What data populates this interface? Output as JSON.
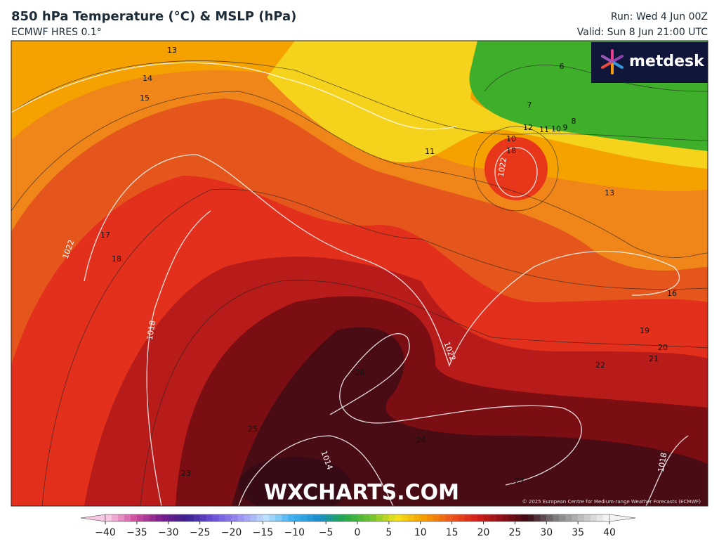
{
  "header": {
    "title": "850 hPa Temperature (°C) & MSLP (hPa)",
    "subtitle": "ECMWF HRES 0.1°",
    "run": "Run: Wed 4 Jun 00Z",
    "valid": "Valid: Sun 8 Jun 21:00 UTC"
  },
  "logo": "metdesk",
  "watermark": "WXCHARTS.COM",
  "copyright": "© 2025 European Centre for Medium-range Weather Forecasts (ECMWF)",
  "map_labels": [
    "13",
    "14",
    "15",
    "17",
    "18",
    "1022",
    "1018",
    "23",
    "25",
    "26",
    "27",
    "11",
    "12",
    "10",
    "18",
    "1022",
    "11",
    "10",
    "9",
    "8",
    "7",
    "6",
    "13",
    "16",
    "19",
    "20",
    "21",
    "22",
    "1022",
    "1014",
    "1018",
    "26"
  ],
  "colorbar": {
    "ticks": [
      "−40",
      "−35",
      "−30",
      "−25",
      "−20",
      "−15",
      "−10",
      "−5",
      "0",
      "5",
      "10",
      "15",
      "20",
      "25",
      "30",
      "35",
      "40"
    ]
  }
}
